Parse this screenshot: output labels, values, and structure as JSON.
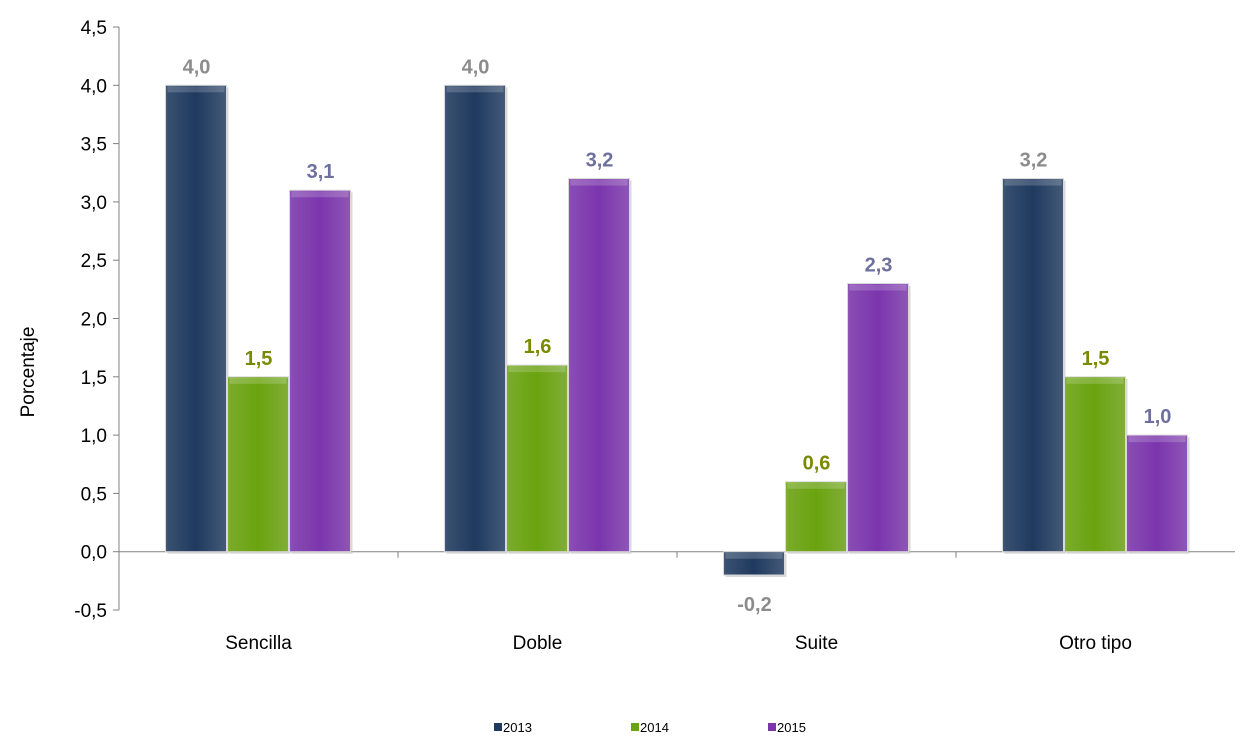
{
  "chart_data": {
    "type": "bar",
    "ylabel": "Porcentaje",
    "xlabel": "",
    "title": "",
    "categories": [
      "Sencilla",
      "Doble",
      "Suite",
      "Otro tipo"
    ],
    "series": [
      {
        "name": "2013",
        "values": [
          4.0,
          4.0,
          -0.2,
          3.2
        ],
        "labels": [
          "4,0",
          "4,0",
          "-0,2",
          "3,2"
        ],
        "color": "#1f3a5f",
        "label_color": "#8c8c8c"
      },
      {
        "name": "2014",
        "values": [
          1.5,
          1.6,
          0.6,
          1.5
        ],
        "labels": [
          "1,5",
          "1,6",
          "0,6",
          "1,5"
        ],
        "color": "#6aa30f",
        "label_color": "#7a8a00"
      },
      {
        "name": "2015",
        "values": [
          3.1,
          3.2,
          2.3,
          1.0
        ],
        "labels": [
          "3,1",
          "3,2",
          "2,3",
          "1,0"
        ],
        "color": "#7b35ad",
        "label_color": "#6f6f9e"
      }
    ],
    "ylim": [
      -0.5,
      4.5
    ],
    "yticks": [
      -0.5,
      0.0,
      0.5,
      1.0,
      1.5,
      2.0,
      2.5,
      3.0,
      3.5,
      4.0,
      4.5
    ],
    "ytick_labels": [
      "-0,5",
      "0,0",
      "0,5",
      "1,0",
      "1,5",
      "2,0",
      "2,5",
      "3,0",
      "3,5",
      "4,0",
      "4,5"
    ],
    "grid": false,
    "legend_position": "bottom"
  }
}
